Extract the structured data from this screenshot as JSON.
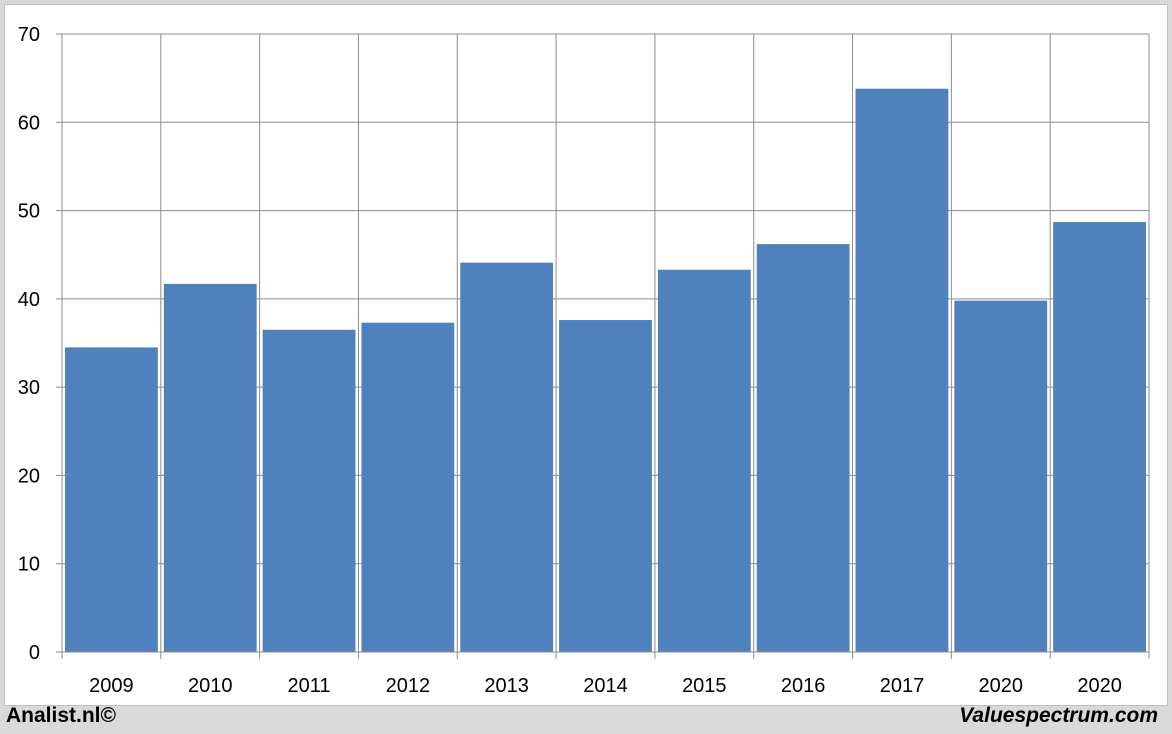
{
  "chart_data": {
    "type": "bar",
    "categories": [
      "2009",
      "2010",
      "2011",
      "2012",
      "2013",
      "2014",
      "2015",
      "2016",
      "2017",
      "2020",
      "2020"
    ],
    "values": [
      34.5,
      41.7,
      36.5,
      37.3,
      44.1,
      37.6,
      43.3,
      46.2,
      63.8,
      39.8,
      48.7
    ],
    "ylim": [
      0,
      70
    ],
    "yticks": [
      0,
      10,
      20,
      30,
      40,
      50,
      60,
      70
    ],
    "grid": true,
    "bar_color": "#4f81bd",
    "title": "",
    "xlabel": "",
    "ylabel": ""
  },
  "footer": {
    "left": "Analist.nl©",
    "right": "Valuespectrum.com"
  }
}
